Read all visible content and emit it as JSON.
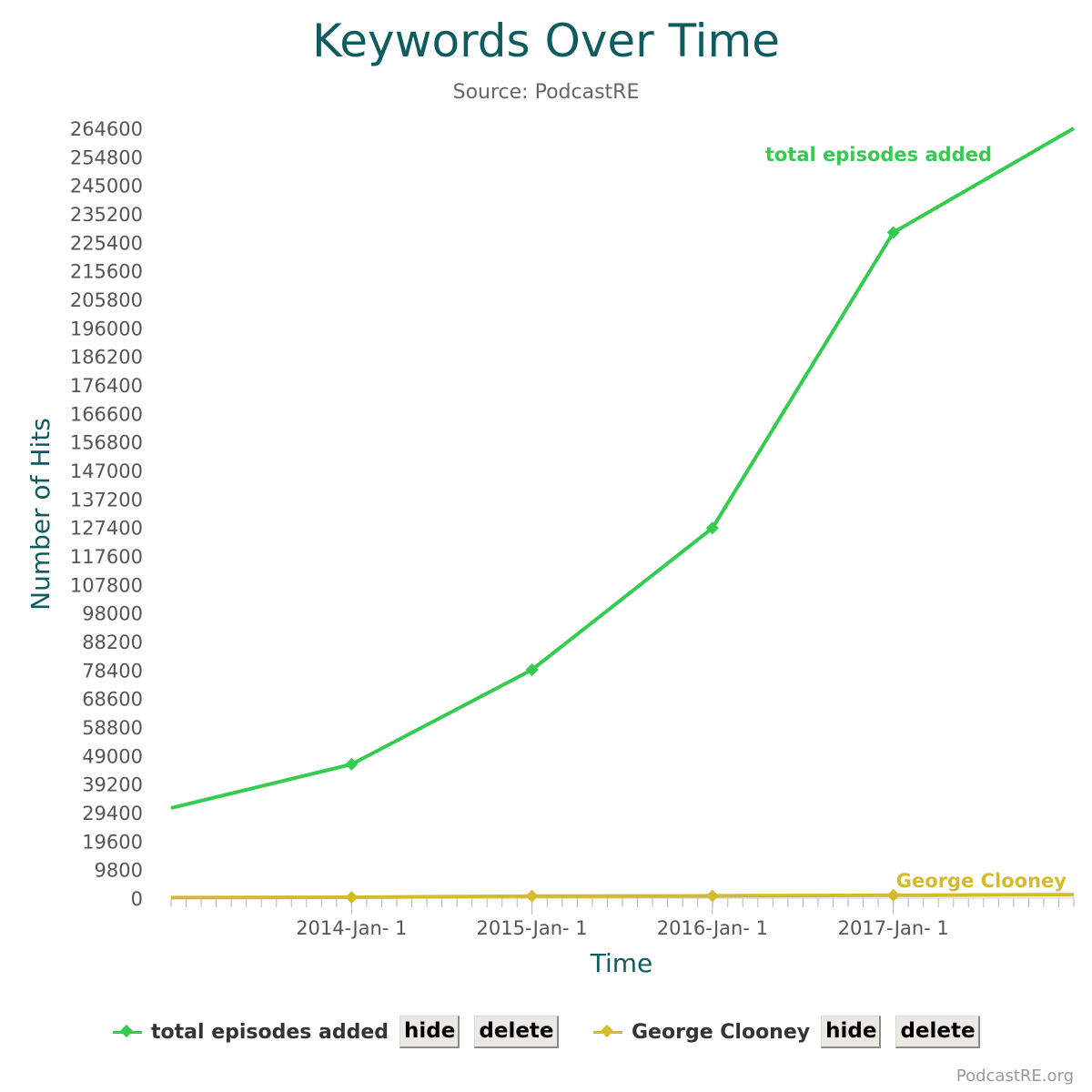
{
  "chart_data": {
    "type": "line",
    "title": "Keywords Over Time",
    "subtitle": "Source: PodcastRE",
    "xlabel": "Time",
    "ylabel": "Number of Hits",
    "x_tick_labels": [
      "2014-Jan- 1",
      "2015-Jan- 1",
      "2016-Jan- 1",
      "2017-Jan- 1"
    ],
    "y_tick_labels": [
      "264600",
      "254800",
      "245000",
      "235200",
      "225400",
      "215600",
      "205800",
      "196000",
      "186200",
      "176400",
      "166600",
      "156800",
      "147000",
      "137200",
      "127400",
      "117600",
      "107800",
      "98000",
      "88200",
      "78400",
      "68600",
      "58800",
      "49000",
      "39200",
      "29400",
      "19600",
      "9800",
      "0"
    ],
    "ylim": [
      0,
      264600
    ],
    "xlim": [
      "2013-01-01",
      "2018-01-01"
    ],
    "series": [
      {
        "name": "total episodes added",
        "color": "#33cc4f",
        "points": [
          {
            "x": "2013-01-01",
            "y": 31000
          },
          {
            "x": "2014-01-01",
            "y": 46000
          },
          {
            "x": "2015-01-01",
            "y": 78500
          },
          {
            "x": "2016-01-01",
            "y": 127200
          },
          {
            "x": "2017-01-01",
            "y": 228800
          },
          {
            "x": "2018-01-01",
            "y": 264600
          }
        ],
        "markers": [
          "2014-01-01",
          "2015-01-01",
          "2016-01-01",
          "2017-01-01"
        ]
      },
      {
        "name": "George Clooney",
        "color": "#d4bb2c",
        "points": [
          {
            "x": "2013-01-01",
            "y": 200
          },
          {
            "x": "2014-01-01",
            "y": 300
          },
          {
            "x": "2015-01-01",
            "y": 700
          },
          {
            "x": "2016-01-01",
            "y": 800
          },
          {
            "x": "2017-01-01",
            "y": 1000
          },
          {
            "x": "2018-01-01",
            "y": 1200
          }
        ],
        "markers": [
          "2014-01-01",
          "2015-01-01",
          "2016-01-01",
          "2017-01-01"
        ]
      }
    ]
  },
  "legend": {
    "items": [
      {
        "label": "total episodes added",
        "hide_label": "hide",
        "delete_label": "delete",
        "color": "#33cc4f"
      },
      {
        "label": "George Clooney",
        "hide_label": "hide",
        "delete_label": "delete",
        "color": "#d4bb2c"
      }
    ]
  },
  "credit": "PodcastRE.org"
}
